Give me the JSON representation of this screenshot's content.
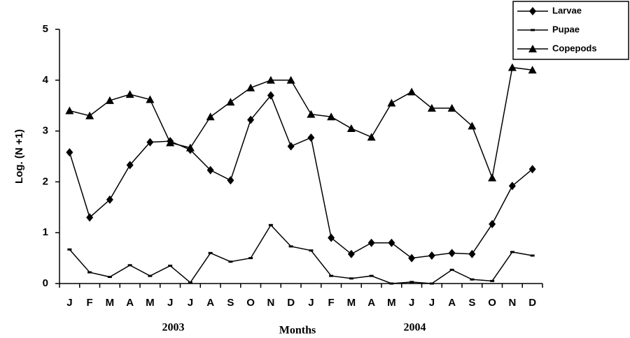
{
  "chart_data": {
    "type": "line",
    "y_label": "Log. (N +1)",
    "x_label": "Months",
    "year_labels": [
      "2003",
      "2004"
    ],
    "categories": [
      "J",
      "F",
      "M",
      "A",
      "M",
      "J",
      "J",
      "A",
      "S",
      "O",
      "N",
      "D",
      "J",
      "F",
      "M",
      "A",
      "M",
      "J",
      "J",
      "A",
      "S",
      "O",
      "N",
      "D"
    ],
    "ylim": [
      0,
      5
    ],
    "yticks": [
      0,
      1,
      2,
      3,
      4,
      5
    ],
    "legend": "top-right",
    "series": [
      {
        "name": "Larvae",
        "color": "#000000",
        "marker": "diamond",
        "values": [
          2.58,
          1.3,
          1.65,
          2.33,
          2.78,
          2.8,
          2.63,
          2.23,
          2.03,
          3.22,
          3.7,
          2.7,
          2.87,
          0.9,
          0.58,
          0.8,
          0.8,
          0.5,
          0.55,
          0.6,
          0.58,
          1.17,
          1.92,
          2.25
        ]
      },
      {
        "name": "Pupae",
        "color": "#000000",
        "marker": "dash",
        "values": [
          0.67,
          0.22,
          0.13,
          0.36,
          0.15,
          0.35,
          0.02,
          0.6,
          0.43,
          0.5,
          1.15,
          0.73,
          0.65,
          0.15,
          0.1,
          0.15,
          0.0,
          0.03,
          0.0,
          0.27,
          0.08,
          0.05,
          0.62,
          0.55
        ]
      },
      {
        "name": "Copepods",
        "color": "#000000",
        "marker": "triangle",
        "values": [
          3.4,
          3.3,
          3.6,
          3.72,
          3.62,
          2.77,
          2.67,
          3.28,
          3.57,
          3.85,
          4.0,
          4.0,
          3.33,
          3.28,
          3.05,
          2.88,
          3.55,
          3.77,
          3.45,
          3.45,
          3.1,
          2.08,
          4.25,
          4.2
        ]
      }
    ]
  }
}
